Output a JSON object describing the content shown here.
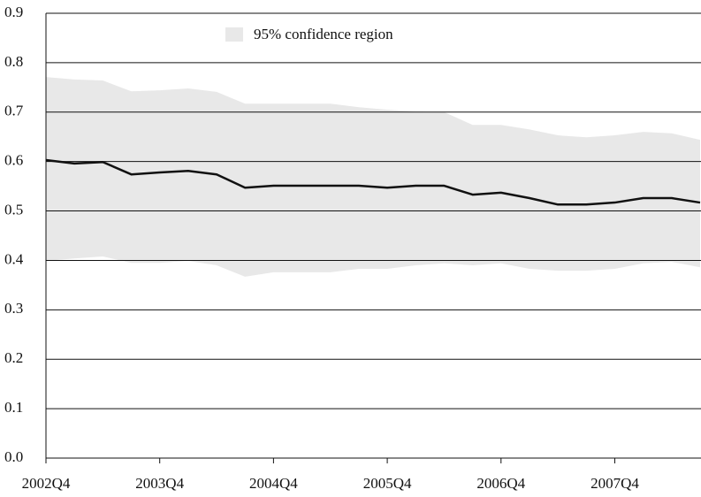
{
  "chart_data": {
    "type": "line",
    "categories": [
      "2002Q4",
      null,
      null,
      null,
      "2003Q4",
      null,
      null,
      null,
      "2004Q4",
      null,
      null,
      null,
      "2005Q4",
      null,
      null,
      null,
      "2006Q4",
      null,
      null,
      null,
      "2007Q4",
      null,
      null,
      null
    ],
    "series": [
      {
        "name": "95% confidence region",
        "color": "#e8e8e8",
        "upper": [
          0.771,
          0.766,
          0.764,
          0.742,
          0.744,
          0.748,
          0.741,
          0.717,
          0.717,
          0.717,
          0.717,
          0.71,
          0.705,
          0.701,
          0.7,
          0.674,
          0.674,
          0.665,
          0.653,
          0.649,
          0.653,
          0.66,
          0.657,
          0.644
        ],
        "lower": [
          0.399,
          0.404,
          0.408,
          0.395,
          0.395,
          0.399,
          0.39,
          0.367,
          0.376,
          0.376,
          0.376,
          0.383,
          0.383,
          0.39,
          0.394,
          0.39,
          0.394,
          0.383,
          0.379,
          0.379,
          0.383,
          0.394,
          0.397,
          0.386
        ]
      },
      {
        "color": "#111111",
        "values": [
          0.603,
          0.596,
          0.599,
          0.574,
          0.578,
          0.581,
          0.574,
          0.547,
          0.551,
          0.551,
          0.551,
          0.551,
          0.547,
          0.551,
          0.551,
          0.533,
          0.537,
          0.526,
          0.513,
          0.513,
          0.517,
          0.526,
          0.526,
          0.517
        ]
      }
    ],
    "ylim": [
      0,
      0.9
    ],
    "yticks": [
      {
        "value": 0,
        "label": "0.0"
      },
      0.1,
      0.2,
      0.3,
      0.4,
      0.5,
      0.6,
      0.7,
      0.8,
      0.9
    ],
    "grid": true
  }
}
